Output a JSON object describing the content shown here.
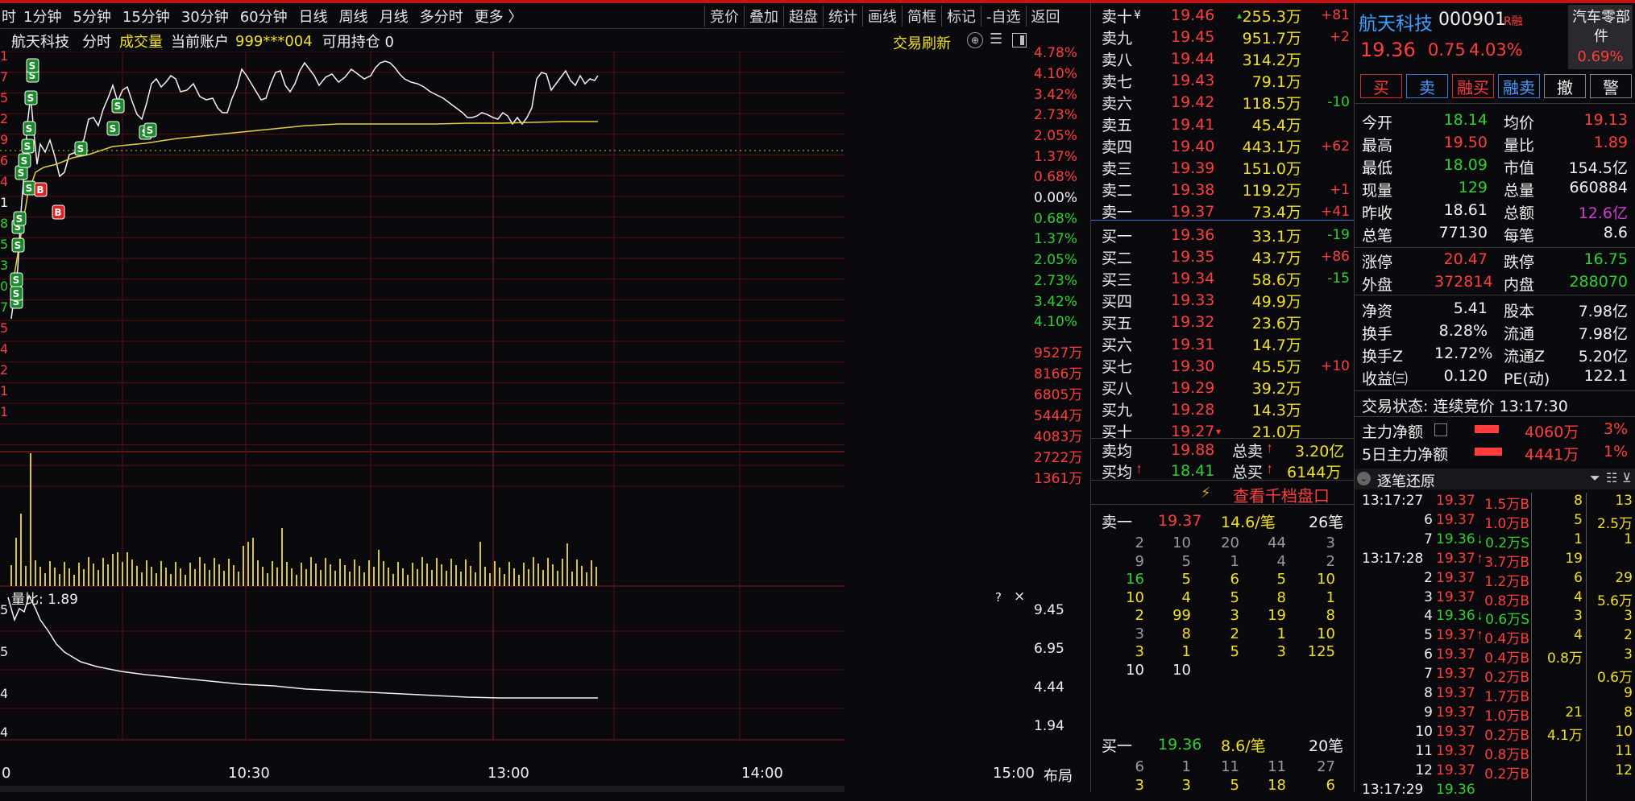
{
  "topbar": {
    "left_cut": "时",
    "intervals": [
      "1分钟",
      "5分钟",
      "15分钟",
      "30分钟",
      "60分钟",
      "日线",
      "周线",
      "月线",
      "多分时",
      "更多 〉"
    ],
    "right": [
      "竞价",
      "叠加",
      "超盘",
      "统计",
      "画线",
      "简框",
      "标记",
      "-自选",
      "返回"
    ]
  },
  "chart_header": {
    "name": "航天科技",
    "mode": "分时",
    "indicator": "成交量",
    "account_label": "当前账户",
    "account": "999***004",
    "holding": "可用持仓 0",
    "trade_refresh": "交易刷新"
  },
  "y_left": [
    "10",
    "7",
    "5",
    "2",
    "9",
    "6",
    "4",
    "1",
    "8",
    "5",
    "3",
    "0",
    "7",
    "5",
    "4",
    "2",
    "1",
    "1"
  ],
  "pct_axis": [
    "4.78%",
    "4.10%",
    "3.42%",
    "2.73%",
    "2.05%",
    "1.37%",
    "0.68%",
    "0.00%",
    "0.68%",
    "1.37%",
    "2.05%",
    "2.73%",
    "3.42%",
    "4.10%"
  ],
  "vol_axis": [
    "9527万",
    "8166万",
    "6805万",
    "5444万",
    "4083万",
    "2722万",
    "1361万"
  ],
  "sub_left": [
    "5",
    "5",
    "4",
    "4"
  ],
  "sub_axis": [
    "9.45",
    "6.95",
    "4.44",
    "1.94"
  ],
  "subchart": {
    "title": "量比: 1.89",
    "q": "?",
    "close": "×"
  },
  "time_axis": {
    "start": "0",
    "t1030": "10:30",
    "t1300": "13:00",
    "t1400": "14:00",
    "t1500": "15:00",
    "layout": "布局"
  },
  "orderbook": {
    "asks": [
      [
        "卖十",
        "19.46",
        "255.3万",
        "+81"
      ],
      [
        "卖九",
        "19.45",
        "951.7万",
        "+2"
      ],
      [
        "卖八",
        "19.44",
        "314.2万",
        ""
      ],
      [
        "卖七",
        "19.43",
        "79.1万",
        ""
      ],
      [
        "卖六",
        "19.42",
        "118.5万",
        "-10"
      ],
      [
        "卖五",
        "19.41",
        "45.4万",
        ""
      ],
      [
        "卖四",
        "19.40",
        "443.1万",
        "+62"
      ],
      [
        "卖三",
        "19.39",
        "151.0万",
        ""
      ],
      [
        "卖二",
        "19.38",
        "119.2万",
        "+1"
      ],
      [
        "卖一",
        "19.37",
        "73.4万",
        "+41"
      ]
    ],
    "bids": [
      [
        "买一",
        "19.36",
        "33.1万",
        "-19"
      ],
      [
        "买二",
        "19.35",
        "43.7万",
        "+86"
      ],
      [
        "买三",
        "19.34",
        "58.6万",
        "-15"
      ],
      [
        "买四",
        "19.33",
        "49.9万",
        ""
      ],
      [
        "买五",
        "19.32",
        "23.6万",
        ""
      ],
      [
        "买六",
        "19.31",
        "14.7万",
        ""
      ],
      [
        "买七",
        "19.30",
        "45.5万",
        "+10"
      ],
      [
        "买八",
        "19.29",
        "39.2万",
        ""
      ],
      [
        "买九",
        "19.28",
        "14.3万",
        ""
      ],
      [
        "买十",
        "19.27",
        "21.0万",
        ""
      ]
    ],
    "sell_avg_label": "卖均",
    "sell_avg": "19.88",
    "total_sell_label": "总卖",
    "total_sell": "3.20亿",
    "buy_avg_label": "买均",
    "buy_avg": "18.41",
    "total_buy_label": "总买",
    "total_buy": "6144万",
    "thousand_link": "查看千档盘口",
    "ask1_queue": {
      "label": "卖一",
      "price": "19.37",
      "avg": "14.6/笔",
      "count": "26笔"
    },
    "ask_grid": [
      [
        "2",
        "10",
        "20",
        "44",
        "3"
      ],
      [
        "9",
        "5",
        "1",
        "4",
        "2"
      ],
      [
        "16",
        "5",
        "6",
        "5",
        "10"
      ],
      [
        "10",
        "4",
        "5",
        "8",
        "1"
      ],
      [
        "2",
        "99",
        "3",
        "19",
        "8"
      ],
      [
        "3",
        "8",
        "2",
        "1",
        "10"
      ],
      [
        "3",
        "1",
        "5",
        "3",
        "125"
      ],
      [
        "10",
        "10",
        "",
        "",
        ""
      ]
    ],
    "bid1_queue": {
      "label": "买一",
      "price": "19.36",
      "avg": "8.6/笔",
      "count": "20笔"
    },
    "bid_grid": [
      [
        "6",
        "1",
        "11",
        "11",
        "27"
      ],
      [
        "3",
        "3",
        "5",
        "18",
        "6"
      ]
    ]
  },
  "quote": {
    "name": "航天科技",
    "code": "000901",
    "badge": "R融",
    "industry": "汽车零部件",
    "industry_pct": "0.69%",
    "price": "19.36",
    "change": "0.75",
    "pct": "4.03%",
    "actions": [
      "买",
      "卖",
      "融买",
      "融卖",
      "撤",
      "警"
    ],
    "stats": [
      [
        "今开",
        "18.14",
        "均价",
        "19.13"
      ],
      [
        "最高",
        "19.50",
        "量比",
        "1.89"
      ],
      [
        "最低",
        "18.09",
        "市值",
        "154.5亿"
      ],
      [
        "现量",
        "129",
        "总量",
        "660884"
      ],
      [
        "昨收",
        "18.61",
        "总额",
        "12.6亿"
      ],
      [
        "总笔",
        "77130",
        "每笔",
        "8.6"
      ],
      [
        "涨停",
        "20.47",
        "跌停",
        "16.75"
      ],
      [
        "外盘",
        "372814",
        "内盘",
        "288070"
      ],
      [
        "净资",
        "5.41",
        "股本",
        "7.98亿"
      ],
      [
        "换手",
        "8.28%",
        "流通",
        "7.98亿"
      ],
      [
        "换手Z",
        "12.72%",
        "流通Z",
        "5.20亿"
      ],
      [
        "收益㈢",
        "0.120",
        "PE(动)",
        "122.1"
      ]
    ],
    "status": "交易状态: 连续竞价 13:17:30",
    "flow": [
      [
        "主力净额",
        "4060万",
        "3%"
      ],
      [
        "5日主力净额",
        "4441万",
        "1%"
      ]
    ],
    "ticks_title": "逐笔还原",
    "ticks": [
      [
        "13:17:27",
        "19.37",
        "1.5万B",
        "8",
        "13"
      ],
      [
        "6",
        "19.37",
        "1.0万B",
        "5",
        "2.5万"
      ],
      [
        "7",
        "19.36",
        "0.2万S",
        "1",
        "1"
      ],
      [
        "13:17:28",
        "19.37",
        "3.7万B",
        "19",
        ""
      ],
      [
        "2",
        "19.37",
        "1.2万B",
        "6",
        "29"
      ],
      [
        "3",
        "19.37",
        "0.8万B",
        "4",
        "5.6万"
      ],
      [
        "4",
        "19.36",
        "0.6万S",
        "3",
        "3"
      ],
      [
        "5",
        "19.37",
        "0.4万B",
        "4",
        "2"
      ],
      [
        "6",
        "19.37",
        "0.4万B",
        "0.8万",
        "3"
      ],
      [
        "7",
        "19.37",
        "0.2万B",
        "",
        "0.6万"
      ],
      [
        "8",
        "19.37",
        "1.7万B",
        "",
        "9"
      ],
      [
        "9",
        "19.37",
        "1.0万B",
        "21",
        "8"
      ],
      [
        "10",
        "19.37",
        "0.2万B",
        "4.1万",
        "10"
      ],
      [
        "11",
        "19.37",
        "0.8万B",
        "",
        "11"
      ],
      [
        "12",
        "19.37",
        "0.2万B",
        "",
        "12"
      ],
      [
        "13:17:29",
        "19.36",
        "",
        "",
        ""
      ]
    ]
  },
  "colors": {
    "up": "#ff3d3d",
    "down": "#2fd12f",
    "yellow": "#f0e020",
    "grid": "#5a0d0d",
    "bg": "#0a0a0e"
  }
}
